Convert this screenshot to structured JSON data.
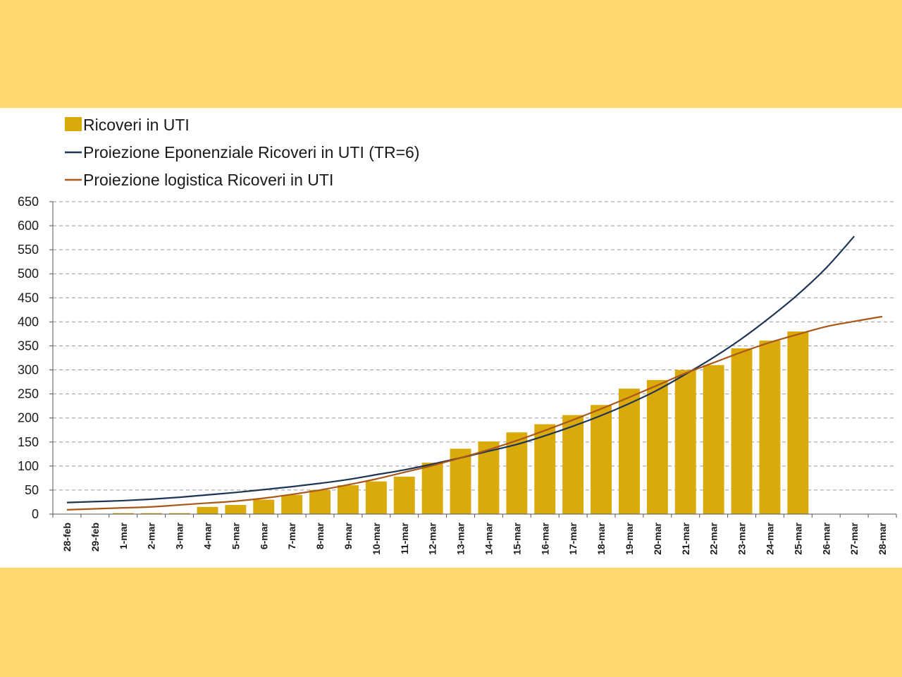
{
  "colors": {
    "background": "#FDD96E",
    "panel": "#FFFFFF",
    "bars": "#DAA90A",
    "exponential_line": "#1F3554",
    "logistic_line": "#A8581A",
    "grid": "#9A9A9A"
  },
  "chart_data": {
    "type": "bar",
    "title": "",
    "xlabel": "",
    "ylabel": "",
    "ylim": [
      0,
      650
    ],
    "yticks": [
      0,
      50,
      100,
      150,
      200,
      250,
      300,
      350,
      400,
      450,
      500,
      550,
      600,
      650
    ],
    "grid": true,
    "legend_position": "top-left",
    "categories": [
      "28-feb",
      "29-feb",
      "1-mar",
      "2-mar",
      "3-mar",
      "4-mar",
      "5-mar",
      "6-mar",
      "7-mar",
      "8-mar",
      "9-mar",
      "10-mar",
      "11-mar",
      "12-mar",
      "13-mar",
      "14-mar",
      "15-mar",
      "16-mar",
      "17-mar",
      "18-mar",
      "19-mar",
      "20-mar",
      "21-mar",
      "22-mar",
      "23-mar",
      "24-mar",
      "25-mar",
      "26-mar",
      "27-mar",
      "28-mar"
    ],
    "series": [
      {
        "name": "Ricoveri in UTI",
        "kind": "bar",
        "values": [
          0,
          0,
          2,
          2,
          2,
          15,
          19,
          30,
          40,
          50,
          60,
          68,
          78,
          107,
          136,
          151,
          170,
          187,
          206,
          227,
          261,
          279,
          300,
          310,
          345,
          361,
          380,
          null,
          null,
          null
        ]
      },
      {
        "name": "Proiezione Eponenziale Ricoveri in UTI  (TR=6)",
        "kind": "line",
        "values": [
          24,
          26,
          28,
          31,
          35,
          40,
          45,
          51,
          57,
          64,
          72,
          82,
          92,
          104,
          117,
          131,
          145,
          163,
          183,
          205,
          230,
          258,
          291,
          326,
          365,
          409,
          457,
          512,
          578,
          null
        ]
      },
      {
        "name": "Proiezione logistica Ricoveri in UTI",
        "kind": "line",
        "values": [
          9,
          11,
          13,
          15,
          19,
          23,
          27,
          33,
          41,
          50,
          61,
          73,
          87,
          101,
          117,
          134,
          153,
          174,
          196,
          219,
          243,
          268,
          293,
          315,
          337,
          357,
          374,
          390,
          401,
          411
        ]
      }
    ]
  }
}
